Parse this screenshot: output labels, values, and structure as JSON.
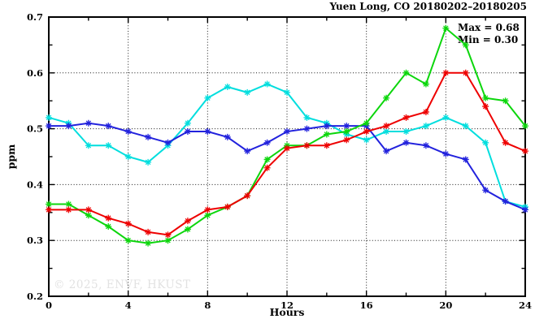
{
  "watermark": "© 2025, ENVF, HKUST",
  "chart_data": {
    "type": "line",
    "title": "Yuen Long, CO 20180202–20180205",
    "xlabel": "Hours",
    "ylabel": "ppm",
    "xlim": [
      0,
      24
    ],
    "ylim": [
      0.2,
      0.7
    ],
    "grid": "dotted",
    "legend": "none",
    "marker": "asterisk",
    "x": [
      0,
      1,
      2,
      3,
      4,
      5,
      6,
      7,
      8,
      9,
      10,
      11,
      12,
      13,
      14,
      15,
      16,
      17,
      18,
      19,
      20,
      21,
      22,
      23,
      24
    ],
    "series": [
      {
        "name": "cyan",
        "color": "#00dede",
        "values": [
          0.52,
          0.51,
          0.47,
          0.47,
          0.45,
          0.44,
          0.47,
          0.51,
          0.555,
          0.575,
          0.565,
          0.58,
          0.565,
          0.52,
          0.51,
          0.49,
          0.48,
          0.495,
          0.495,
          0.505,
          0.52,
          0.505,
          0.475,
          0.37,
          0.36
        ]
      },
      {
        "name": "blue",
        "color": "#2222dd",
        "values": [
          0.505,
          0.505,
          0.51,
          0.505,
          0.495,
          0.485,
          0.475,
          0.495,
          0.495,
          0.485,
          0.46,
          0.475,
          0.495,
          0.5,
          0.505,
          0.505,
          0.505,
          0.46,
          0.475,
          0.47,
          0.455,
          0.445,
          0.39,
          0.37,
          0.355
        ]
      },
      {
        "name": "green",
        "color": "#0cd60c",
        "values": [
          0.365,
          0.365,
          0.345,
          0.325,
          0.3,
          0.295,
          0.3,
          0.32,
          0.345,
          0.36,
          0.38,
          0.445,
          0.47,
          0.47,
          0.49,
          0.495,
          0.51,
          0.555,
          0.6,
          0.58,
          0.68,
          0.65,
          0.555,
          0.55,
          0.505
        ]
      },
      {
        "name": "red",
        "color": "#ee0000",
        "values": [
          0.355,
          0.355,
          0.355,
          0.34,
          0.33,
          0.315,
          0.31,
          0.335,
          0.355,
          0.36,
          0.38,
          0.43,
          0.465,
          0.47,
          0.47,
          0.48,
          0.495,
          0.505,
          0.52,
          0.53,
          0.6,
          0.6,
          0.54,
          0.475,
          0.46
        ]
      }
    ],
    "x_major_ticks": [
      0,
      4,
      8,
      12,
      16,
      20,
      24
    ],
    "x_tick_labels": [
      "0",
      "4",
      "8",
      "12",
      "16",
      "20",
      "24"
    ],
    "x_minor_ticks": [
      2,
      6,
      10,
      14,
      18,
      22
    ],
    "y_major_ticks": [
      0.2,
      0.3,
      0.4,
      0.5,
      0.6,
      0.7
    ],
    "y_tick_labels": [
      "0.2",
      "0.3",
      "0.4",
      "0.5",
      "0.6",
      "0.7"
    ],
    "y_minor_ticks": [
      0.25,
      0.35,
      0.45,
      0.55,
      0.65
    ],
    "x_gridlines": [
      4,
      8,
      12,
      16,
      20
    ],
    "y_gridlines": [
      0.3,
      0.4,
      0.5,
      0.6
    ],
    "annotations": [
      {
        "text": "Max = 0.68"
      },
      {
        "text": "Min = 0.30"
      }
    ],
    "stats": {
      "max": 0.68,
      "min": 0.3
    }
  }
}
